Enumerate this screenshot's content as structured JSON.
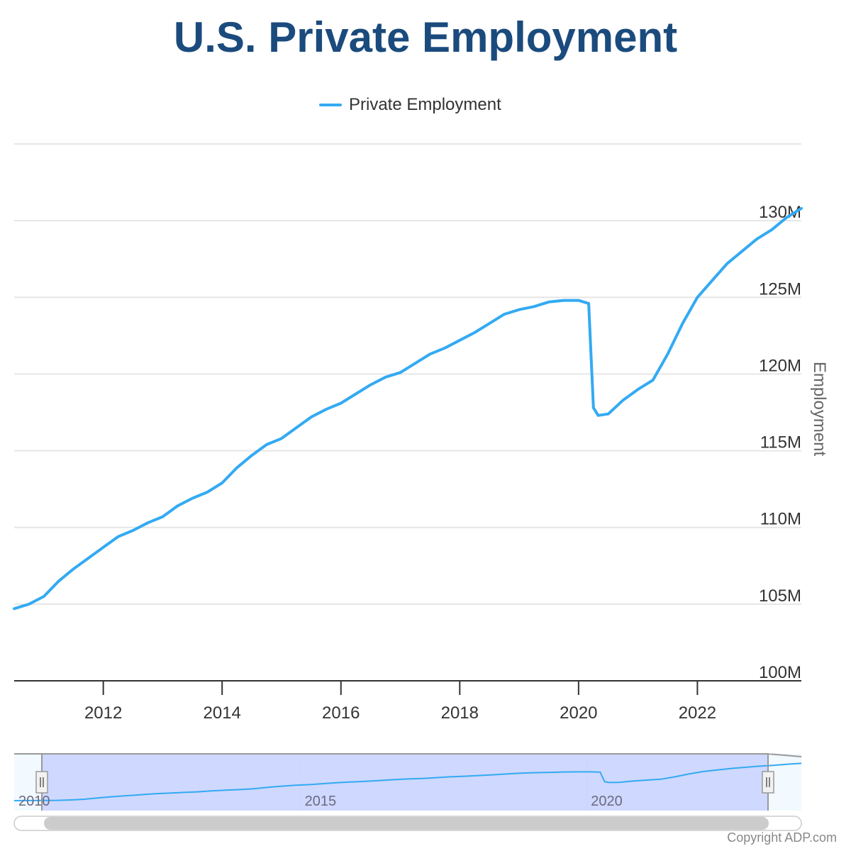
{
  "title": "U.S. Private Employment",
  "legend": {
    "label": "Private Employment",
    "color": "#33aaf2"
  },
  "copyright": "Copyright ADP.com",
  "colors": {
    "line": "#33aaf2",
    "title": "#1b4b7d",
    "grid": "#e6e6e6",
    "navigator_mask": "#ccd6ff"
  },
  "chart_data": {
    "type": "line",
    "title": "U.S. Private Employment",
    "xlabel": "",
    "ylabel": "Employment",
    "xlim": [
      2010.5,
      2023.75
    ],
    "ylim": [
      100,
      135
    ],
    "y_ticks": [
      100,
      105,
      110,
      115,
      120,
      125,
      130
    ],
    "y_tick_labels": [
      "100M",
      "105M",
      "110M",
      "115M",
      "120M",
      "125M",
      "130M"
    ],
    "x_ticks": [
      2012,
      2014,
      2016,
      2018,
      2020,
      2022
    ],
    "x_tick_labels": [
      "2012",
      "2014",
      "2016",
      "2018",
      "2020",
      "2022"
    ],
    "grid": true,
    "legend": "top-center",
    "series": [
      {
        "name": "Private Employment",
        "unit": "millions",
        "x": [
          2010.5,
          2010.75,
          2011.0,
          2011.25,
          2011.5,
          2011.75,
          2012.0,
          2012.25,
          2012.5,
          2012.75,
          2013.0,
          2013.25,
          2013.5,
          2013.75,
          2014.0,
          2014.25,
          2014.5,
          2014.75,
          2015.0,
          2015.25,
          2015.5,
          2015.75,
          2016.0,
          2016.25,
          2016.5,
          2016.75,
          2017.0,
          2017.25,
          2017.5,
          2017.75,
          2018.0,
          2018.25,
          2018.5,
          2018.75,
          2019.0,
          2019.25,
          2019.5,
          2019.75,
          2020.0,
          2020.17,
          2020.25,
          2020.33,
          2020.5,
          2020.75,
          2021.0,
          2021.25,
          2021.5,
          2021.75,
          2022.0,
          2022.25,
          2022.5,
          2022.75,
          2023.0,
          2023.25,
          2023.5,
          2023.75
        ],
        "values": [
          104.7,
          105.0,
          105.5,
          106.5,
          107.3,
          108.0,
          108.7,
          109.4,
          109.8,
          110.3,
          110.7,
          111.4,
          111.9,
          112.3,
          112.9,
          113.9,
          114.7,
          115.4,
          115.8,
          116.5,
          117.2,
          117.7,
          118.1,
          118.7,
          119.3,
          119.8,
          120.1,
          120.7,
          121.3,
          121.7,
          122.2,
          122.7,
          123.3,
          123.9,
          124.2,
          124.4,
          124.7,
          124.8,
          124.8,
          124.6,
          117.8,
          117.3,
          117.4,
          118.3,
          119.0,
          119.6,
          121.3,
          123.3,
          125.0,
          126.1,
          127.2,
          128.0,
          128.8,
          129.4,
          130.2,
          130.8
        ]
      }
    ],
    "navigator": {
      "x_labels": [
        "2010",
        "2015",
        "2020"
      ],
      "range_start": 2010.5,
      "range_end": 2023.75
    }
  }
}
